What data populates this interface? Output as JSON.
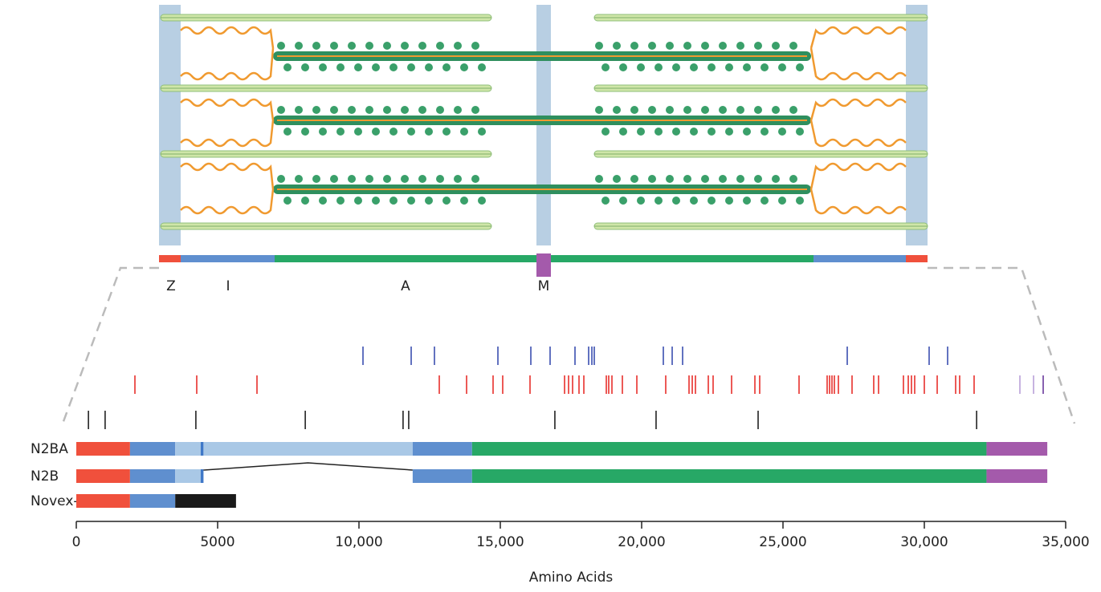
{
  "chart_data": {
    "type": "isoform",
    "x_label": "Amino Acids",
    "xlim": [
      0,
      35000
    ],
    "xticks": [
      0,
      5000,
      {
        "value": 10000,
        "label": "10,000"
      },
      {
        "value": 15000,
        "label": "15,000"
      },
      {
        "value": 20000,
        "label": "20,000"
      },
      {
        "value": 25000,
        "label": "25,000"
      },
      {
        "value": 30000,
        "label": "30,000"
      },
      {
        "value": 35000,
        "label": "35,000"
      }
    ],
    "annotations": [
      "Z",
      "I",
      "A",
      "M"
    ],
    "series": [
      {
        "color": "#3b4fb0",
        "values": [
          10142,
          11847,
          12670,
          14915,
          16080,
          16761,
          17642,
          18125,
          18239,
          18324,
          20767,
          21080,
          21449,
          27273,
          30170,
          30824
        ]
      },
      {
        "color": "#e8302c",
        "values": [
          2074,
          4261,
          6392,
          12841,
          13807,
          14744,
          15085,
          16051,
          17273,
          17415,
          17557,
          17784,
          17955,
          18750,
          18835,
          18949,
          19318,
          19830,
          20852,
          21676,
          21790,
          21903,
          22358,
          22528,
          23182,
          24006,
          24176,
          25568,
          26562,
          26648,
          26733,
          26818,
          26960,
          27443,
          28210,
          28381,
          29261,
          29432,
          29545,
          29659,
          30000,
          30455,
          31108,
          31250,
          31761
        ]
      },
      {
        "color": "#b9a0d8",
        "values": [
          33381,
          33864
        ]
      },
      {
        "color": "#6a3a9c",
        "values": [
          34205
        ]
      },
      {
        "color": "#222222",
        "values": [
          430,
          1020,
          4230,
          8100,
          11560,
          11760,
          16930,
          20510,
          24120,
          31850
        ]
      }
    ],
    "isoforms": [
      {
        "name": "N2BA",
        "segments": [
          {
            "start": 0,
            "end": 1900,
            "color": "#f0503c"
          },
          {
            "start": 1900,
            "end": 3500,
            "color": "#5f8fcf"
          },
          {
            "start": 3500,
            "end": 4400,
            "color": "#a9c8e6"
          },
          {
            "start": 4400,
            "end": 4500,
            "color": "#3f78c8"
          },
          {
            "start": 4500,
            "end": 11900,
            "color": "#a9c8e6"
          },
          {
            "start": 11900,
            "end": 14000,
            "color": "#5f8fcf"
          },
          {
            "start": 14000,
            "end": 32200,
            "color": "#27a866"
          },
          {
            "start": 32200,
            "end": 34350,
            "color": "#a45aab"
          }
        ]
      },
      {
        "name": "N2B",
        "segments": [
          {
            "start": 0,
            "end": 1900,
            "color": "#f0503c"
          },
          {
            "start": 1900,
            "end": 3500,
            "color": "#5f8fcf"
          },
          {
            "start": 3500,
            "end": 4400,
            "color": "#a9c8e6"
          },
          {
            "start": 4400,
            "end": 4500,
            "color": "#3f78c8"
          },
          {
            "start": 11900,
            "end": 14000,
            "color": "#5f8fcf"
          },
          {
            "start": 14000,
            "end": 32200,
            "color": "#27a866"
          },
          {
            "start": 32200,
            "end": 34350,
            "color": "#a45aab"
          }
        ]
      },
      {
        "name": "Novex-3",
        "segments": [
          {
            "start": 0,
            "end": 1900,
            "color": "#f0503c"
          },
          {
            "start": 1900,
            "end": 3500,
            "color": "#5f8fcf"
          },
          {
            "start": 3500,
            "end": 5650,
            "color": "#1a1a1a"
          }
        ]
      }
    ]
  }
}
